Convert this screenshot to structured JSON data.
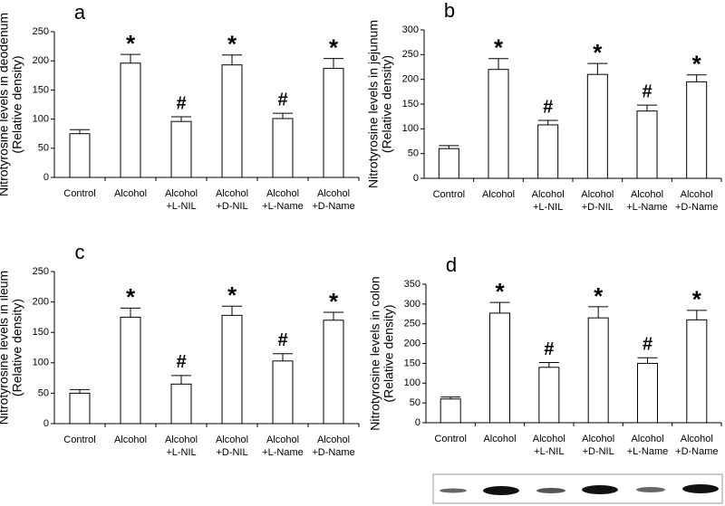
{
  "chart_data": [
    {
      "type": "bar",
      "title": "a",
      "ylabel": [
        "Nitrotyrosine levels in deodenum",
        "(Relative density)"
      ],
      "categories": [
        [
          "Control"
        ],
        [
          "Alcohol"
        ],
        [
          "Alcohol",
          "+L-NIL"
        ],
        [
          "Alcohol",
          "+D-NIL"
        ],
        [
          "Alcohol",
          "+L-Name"
        ],
        [
          "Alcohol",
          "+D-Name"
        ]
      ],
      "values": [
        75,
        196,
        96,
        193,
        101,
        187
      ],
      "errors": [
        7,
        15,
        8,
        17,
        9,
        17
      ],
      "annotations": [
        null,
        "*",
        "#",
        "*",
        "#",
        "*"
      ],
      "color": "#ffffff",
      "ylim": [
        0,
        250
      ],
      "yticks": [
        0,
        50,
        100,
        150,
        200,
        250
      ]
    },
    {
      "type": "bar",
      "title": "b",
      "ylabel": [
        "Nitrotyrosine levels in jejunum",
        "(Relative density)"
      ],
      "categories": [
        [
          "Control"
        ],
        [
          "Alcohol"
        ],
        [
          "Alcohol",
          "+L-NIL"
        ],
        [
          "Alcohol",
          "+D-NIL"
        ],
        [
          "Alcohol",
          "+L-Name"
        ],
        [
          "Alcohol",
          "+D-Name"
        ]
      ],
      "values": [
        60,
        220,
        108,
        210,
        136,
        195
      ],
      "errors": [
        6,
        22,
        9,
        22,
        12,
        14
      ],
      "annotations": [
        null,
        "*",
        "#",
        "*",
        "#",
        "*"
      ],
      "color": "#ffffff",
      "ylim": [
        0,
        300
      ],
      "yticks": [
        0,
        50,
        100,
        150,
        200,
        250,
        300
      ]
    },
    {
      "type": "bar",
      "title": "c",
      "ylabel": [
        "Nitrotyrosine levels in ileum",
        "(Relative density)"
      ],
      "categories": [
        [
          "Control"
        ],
        [
          "Alcohol"
        ],
        [
          "Alcohol",
          "+L-NIL"
        ],
        [
          "Alcohol",
          "+D-NIL"
        ],
        [
          "Alcohol",
          "+L-Name"
        ],
        [
          "Alcohol",
          "+D-Name"
        ]
      ],
      "values": [
        50,
        175,
        65,
        178,
        103,
        170
      ],
      "errors": [
        6,
        15,
        14,
        15,
        12,
        13
      ],
      "annotations": [
        null,
        "*",
        "#",
        "*",
        "#",
        "*"
      ],
      "color": "#ffffff",
      "ylim": [
        0,
        250
      ],
      "yticks": [
        0,
        50,
        100,
        150,
        200,
        250
      ]
    },
    {
      "type": "bar",
      "title": "d",
      "ylabel": [
        "Nitrotyrosine levels in colon",
        "(Relative density)"
      ],
      "categories": [
        [
          "Control"
        ],
        [
          "Alcohol"
        ],
        [
          "Alcohol",
          "+L-NIL"
        ],
        [
          "Alcohol",
          "+D-NIL"
        ],
        [
          "Alcohol",
          "+L-Name"
        ],
        [
          "Alcohol",
          "+D-Name"
        ]
      ],
      "values": [
        60,
        277,
        140,
        265,
        150,
        260
      ],
      "errors": [
        5,
        27,
        12,
        28,
        14,
        24
      ],
      "annotations": [
        null,
        "*",
        "#",
        "*",
        "#",
        "*"
      ],
      "color": "#ffffff",
      "ylim": [
        0,
        350
      ],
      "yticks": [
        0,
        50,
        100,
        150,
        200,
        250,
        300,
        350
      ]
    }
  ]
}
